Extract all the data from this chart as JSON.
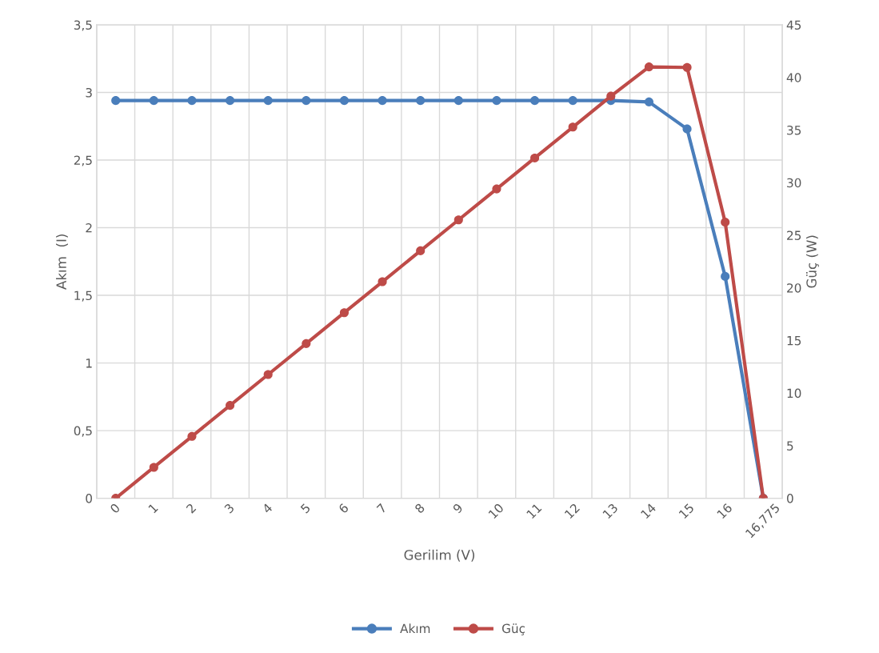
{
  "chart_data": {
    "type": "line",
    "xlabel": "Gerilim (V)",
    "ylabel": "Akım  (I)",
    "y2label": "Güç (W)",
    "categories": [
      "0",
      "1",
      "2",
      "3",
      "4",
      "5",
      "6",
      "7",
      "8",
      "9",
      "10",
      "11",
      "12",
      "13",
      "14",
      "15",
      "16",
      "16,775"
    ],
    "series": [
      {
        "name": "Akım",
        "color": "#4a7ebb",
        "values": [
          2.94,
          2.94,
          2.94,
          2.94,
          2.94,
          2.94,
          2.94,
          2.94,
          2.94,
          2.94,
          2.94,
          2.94,
          2.94,
          2.94,
          2.93,
          2.73,
          1.64,
          0
        ]
      },
      {
        "name": "Güç",
        "color": "#be4b48",
        "axis": "y2",
        "values": [
          0,
          2.94,
          5.88,
          8.82,
          11.76,
          14.7,
          17.64,
          20.58,
          23.52,
          26.46,
          29.4,
          32.34,
          35.28,
          38.22,
          41.0,
          40.95,
          26.24,
          0
        ]
      }
    ],
    "ylim": [
      0,
      3.5
    ],
    "yticks": [
      0,
      {
        "value": 0.5,
        "label": "0,5"
      },
      1,
      {
        "value": 1.5,
        "label": "1,5"
      },
      2,
      {
        "value": 2.5,
        "label": "2,5"
      },
      3,
      {
        "value": 3.5,
        "label": "3,5"
      }
    ],
    "y2lim": [
      0,
      45
    ],
    "y2ticks": [
      0,
      5,
      10,
      15,
      20,
      25,
      30,
      35,
      40,
      45
    ],
    "grid": true,
    "legend": "bottom",
    "marker": "circle",
    "line_style": "solid"
  }
}
